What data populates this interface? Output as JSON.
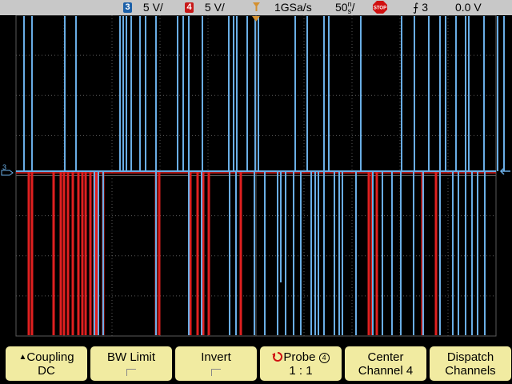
{
  "status": {
    "ch3_badge": "3",
    "ch3_scale": "5 V/",
    "ch4_badge": "4",
    "ch4_scale": "5 V/",
    "sample_rate": "1GSa/s",
    "timebase": "50",
    "timebase_unit_top": "n",
    "timebase_unit_bottom": "s",
    "timebase_suffix": "/",
    "run_state": "STOP",
    "trigger_symbol": "⨍",
    "trigger_channel": "3",
    "trigger_level": "0.0 V"
  },
  "markers": {
    "ground_ch3": "3",
    "ground_ch4": "4"
  },
  "softkeys": {
    "coupling_label": "Coupling",
    "coupling_value": "DC",
    "bwlimit_label": "BW Limit",
    "invert_label": "Invert",
    "probe_label": "Probe",
    "probe_value": "1 : 1",
    "probe_channel": "4",
    "center_label": "Center",
    "center_value": "Channel 4",
    "dispatch_label": "Dispatch",
    "dispatch_value": "Channels"
  },
  "colors": {
    "ch3": "#6aaee6",
    "ch4": "#e02020",
    "grid": "#5a5a5a",
    "softkey_bg": "#f1eba1",
    "statusbar_bg": "#c8c8c8"
  },
  "trace_data": {
    "ch3_up_spikes": [
      30,
      40,
      81,
      95,
      150,
      154,
      158,
      164,
      175,
      182,
      195,
      222,
      229,
      236,
      253,
      286,
      292,
      296,
      309,
      319,
      323,
      369,
      384,
      405,
      411,
      451,
      502,
      518,
      536,
      550,
      557,
      570,
      582,
      586,
      605,
      622,
      630
    ],
    "ch3_down_spikes": [
      118,
      123,
      129,
      195,
      236,
      252,
      287,
      295,
      318,
      331,
      347,
      351,
      357,
      367,
      376,
      389,
      394,
      398,
      405,
      418,
      424,
      428,
      445,
      466,
      478,
      490,
      501,
      517,
      529,
      550,
      566,
      573,
      582,
      590,
      597,
      606
    ],
    "ch4_down_spikes": [
      36,
      40,
      67,
      76,
      80,
      85,
      91,
      98,
      103,
      107,
      113,
      118,
      121,
      129,
      195,
      199,
      238,
      247,
      254,
      261,
      301,
      461,
      465,
      471,
      528,
      545
    ]
  }
}
